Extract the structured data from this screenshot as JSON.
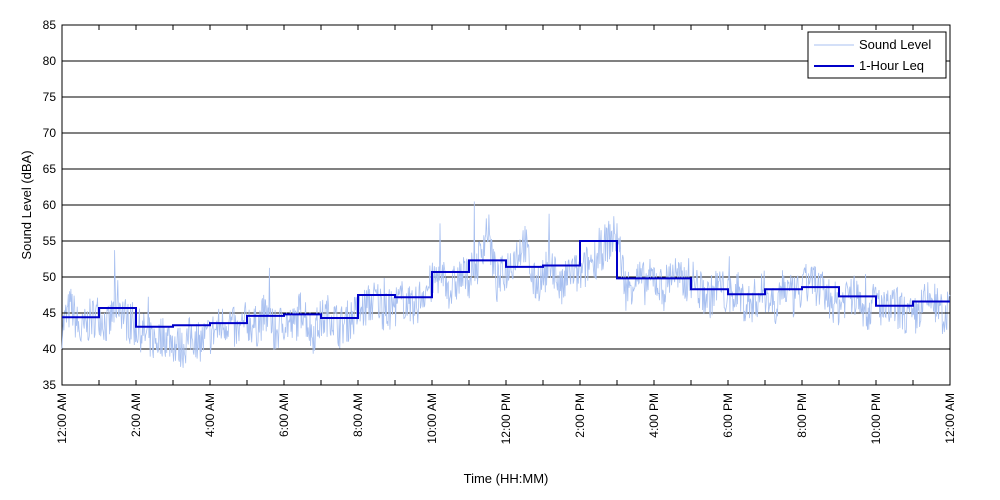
{
  "chart_data": {
    "type": "line",
    "xlabel": "Time (HH:MM)",
    "ylabel": "Sound Level (dBA)",
    "ylim": [
      35,
      85
    ],
    "xlim": [
      0,
      24
    ],
    "x_unit": "hours after 12:00 AM",
    "yticks": [
      35,
      40,
      45,
      50,
      55,
      60,
      65,
      70,
      75,
      80,
      85
    ],
    "xticks": [
      {
        "x": 0,
        "label": "12:00 AM"
      },
      {
        "x": 2,
        "label": "2:00 AM"
      },
      {
        "x": 4,
        "label": "4:00 AM"
      },
      {
        "x": 6,
        "label": "6:00 AM"
      },
      {
        "x": 8,
        "label": "8:00 AM"
      },
      {
        "x": 10,
        "label": "10:00 AM"
      },
      {
        "x": 12,
        "label": "12:00 PM"
      },
      {
        "x": 14,
        "label": "2:00 PM"
      },
      {
        "x": 16,
        "label": "4:00 PM"
      },
      {
        "x": 18,
        "label": "6:00 PM"
      },
      {
        "x": 20,
        "label": "8:00 PM"
      },
      {
        "x": 22,
        "label": "10:00 PM"
      },
      {
        "x": 24,
        "label": "12:00 AM"
      }
    ],
    "grid": "horizontal",
    "legend_position": "top-right",
    "series": [
      {
        "name": "Sound Level",
        "color": "#a8c0f0",
        "style": "thin",
        "x": [
          0.0,
          0.25,
          0.5,
          0.75,
          1.0,
          1.25,
          1.5,
          1.75,
          2.0,
          2.25,
          2.5,
          2.75,
          3.0,
          3.25,
          3.5,
          3.75,
          4.0,
          4.25,
          4.5,
          4.75,
          5.0,
          5.25,
          5.5,
          5.75,
          6.0,
          6.25,
          6.5,
          6.75,
          7.0,
          7.25,
          7.5,
          7.75,
          8.0,
          8.25,
          8.5,
          8.75,
          9.0,
          9.25,
          9.5,
          9.75,
          10.0,
          10.25,
          10.5,
          10.75,
          11.0,
          11.25,
          11.5,
          11.75,
          12.0,
          12.25,
          12.5,
          12.75,
          13.0,
          13.25,
          13.5,
          13.75,
          14.0,
          14.25,
          14.5,
          14.75,
          15.0,
          15.25,
          15.5,
          15.75,
          16.0,
          16.25,
          16.5,
          16.75,
          17.0,
          17.25,
          17.5,
          17.75,
          18.0,
          18.25,
          18.5,
          18.75,
          19.0,
          19.25,
          19.5,
          19.75,
          20.0,
          20.25,
          20.5,
          20.75,
          21.0,
          21.25,
          21.5,
          21.75,
          22.0,
          22.25,
          22.5,
          22.75,
          23.0,
          23.25,
          23.5,
          23.75,
          24.0
        ],
        "values": [
          43,
          46,
          42,
          44,
          45,
          43,
          47,
          44,
          43,
          42,
          41,
          42,
          41,
          40,
          42,
          41,
          42,
          43,
          44,
          42,
          44,
          43,
          45,
          42,
          44,
          43,
          46,
          42,
          44,
          45,
          43,
          44,
          45,
          46,
          47,
          45,
          46,
          47,
          45,
          48,
          49,
          51,
          48,
          50,
          50,
          52,
          57,
          49,
          51,
          53,
          55,
          49,
          50,
          52,
          48,
          51,
          50,
          52,
          53,
          55,
          56,
          48,
          50,
          49,
          50,
          48,
          51,
          49,
          50,
          48,
          47,
          49,
          47,
          48,
          46,
          47,
          48,
          46,
          49,
          47,
          48,
          50,
          48,
          47,
          46,
          48,
          47,
          45,
          47,
          45,
          46,
          45,
          44,
          46,
          47,
          45,
          45
        ]
      },
      {
        "name": "1-Hour Leq",
        "color": "#0000c8",
        "style": "step",
        "x": [
          0,
          1,
          2,
          3,
          4,
          5,
          6,
          7,
          8,
          9,
          10,
          11,
          12,
          13,
          14,
          15,
          16,
          17,
          18,
          19,
          20,
          21,
          22,
          23,
          24
        ],
        "values": [
          44.4,
          45.7,
          43.1,
          43.3,
          43.6,
          44.6,
          44.8,
          44.3,
          47.5,
          47.2,
          50.7,
          52.3,
          51.4,
          51.6,
          55.0,
          49.8,
          49.8,
          48.3,
          47.6,
          48.3,
          48.6,
          47.3,
          46.0,
          46.6,
          46.6
        ]
      }
    ]
  }
}
